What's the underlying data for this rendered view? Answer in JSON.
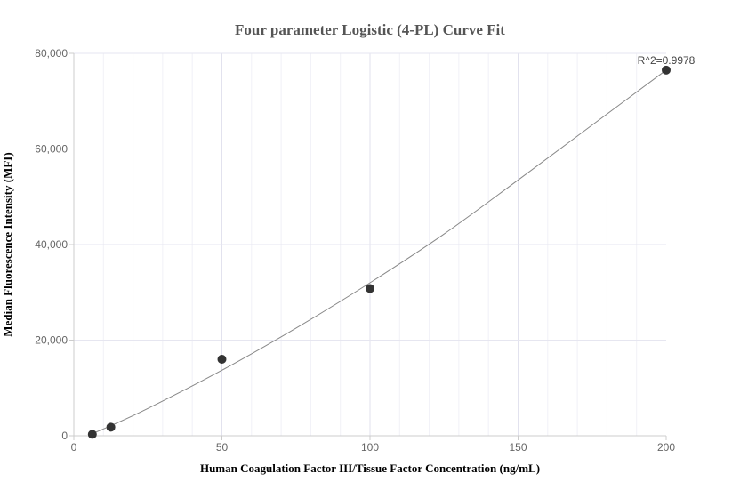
{
  "chart_data": {
    "type": "scatter",
    "title": "Four parameter Logistic (4-PL) Curve Fit",
    "xlabel": "Human Coagulation Factor III/Tissue Factor Concentration (ng/mL)",
    "ylabel": "Median Fluorescence Intensity (MFI)",
    "xlim": [
      0,
      200
    ],
    "ylim": [
      0,
      80000
    ],
    "x_ticks": [
      0,
      50,
      100,
      150,
      200
    ],
    "x_tick_labels": [
      "0",
      "50",
      "100",
      "150",
      "200"
    ],
    "y_ticks": [
      0,
      20000,
      40000,
      60000,
      80000
    ],
    "y_tick_labels": [
      "0",
      "20,000",
      "40,000",
      "60,000",
      "80,000"
    ],
    "grid": true,
    "points": [
      {
        "x": 6.25,
        "y": 300
      },
      {
        "x": 12.5,
        "y": 1800
      },
      {
        "x": 50,
        "y": 16000
      },
      {
        "x": 100,
        "y": 30800
      },
      {
        "x": 200,
        "y": 76500
      }
    ],
    "fit_curve": [
      {
        "x": 6.25,
        "y": 450
      },
      {
        "x": 12.5,
        "y": 2100
      },
      {
        "x": 25,
        "y": 5700
      },
      {
        "x": 50,
        "y": 13700
      },
      {
        "x": 75,
        "y": 22500
      },
      {
        "x": 100,
        "y": 32000
      },
      {
        "x": 125,
        "y": 42200
      },
      {
        "x": 150,
        "y": 53500
      },
      {
        "x": 175,
        "y": 65000
      },
      {
        "x": 200,
        "y": 76500
      }
    ],
    "annotation": "R^2=0.9978",
    "colors": {
      "point": "#333333",
      "curve": "#888888",
      "grid": "#e6e6f0",
      "axis": "#cccccc"
    }
  }
}
